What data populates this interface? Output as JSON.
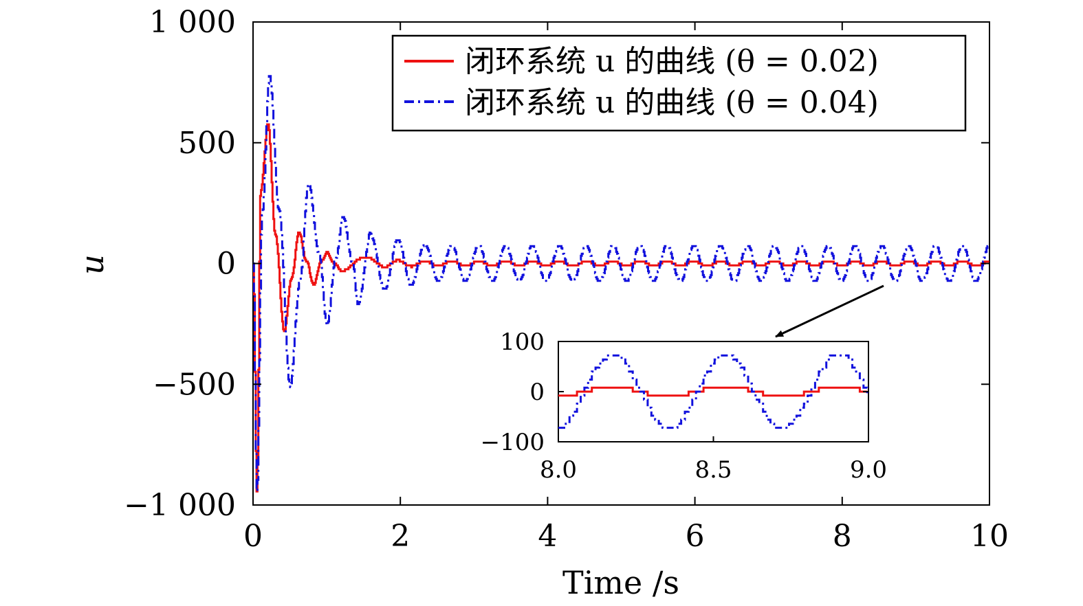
{
  "chart_data": {
    "type": "line",
    "xlabel": "Time /s",
    "ylabel": "u",
    "xlim": [
      0,
      10
    ],
    "ylim": [
      -1000,
      1000
    ],
    "x_ticks": [
      0,
      2,
      4,
      6,
      8,
      10
    ],
    "x_tick_labels": [
      "0",
      "2",
      "4",
      "6",
      "8",
      "10"
    ],
    "y_ticks": [
      -1000,
      -500,
      0,
      500,
      1000
    ],
    "y_tick_labels": [
      "−1 000",
      "−500",
      "0",
      "500",
      "1 000"
    ],
    "grid": false,
    "legend": "top-right",
    "series": [
      {
        "name": "闭环系统 u 的曲线 (θ = 0.02)",
        "color": "#ee1111",
        "style": "solid",
        "points": [
          [
            0.0,
            0
          ],
          [
            0.05,
            -950
          ],
          [
            0.1,
            300
          ],
          [
            0.2,
            580
          ],
          [
            0.3,
            120
          ],
          [
            0.42,
            -280
          ],
          [
            0.52,
            -60
          ],
          [
            0.62,
            130
          ],
          [
            0.72,
            10
          ],
          [
            0.82,
            -90
          ],
          [
            0.92,
            10
          ],
          [
            1.0,
            45
          ],
          [
            1.1,
            0
          ],
          [
            1.2,
            -30
          ],
          [
            1.5,
            25
          ],
          [
            2.0,
            -15
          ],
          [
            3.0,
            15
          ],
          [
            10.0,
            -10
          ]
        ],
        "steady_amplitude": 10,
        "steady_period": 0.365
      },
      {
        "name": "闭环系统 u 的曲线 (θ = 0.04)",
        "color": "#1111dd",
        "style": "dashdot",
        "points": [
          [
            0.0,
            0
          ],
          [
            0.05,
            -950
          ],
          [
            0.12,
            200
          ],
          [
            0.22,
            780
          ],
          [
            0.35,
            220
          ],
          [
            0.5,
            -510
          ],
          [
            0.63,
            -80
          ],
          [
            0.75,
            330
          ],
          [
            0.9,
            30
          ],
          [
            1.0,
            -260
          ],
          [
            1.12,
            20
          ],
          [
            1.22,
            195
          ],
          [
            1.35,
            0
          ],
          [
            1.42,
            -170
          ],
          [
            1.6,
            135
          ],
          [
            2.0,
            80
          ],
          [
            3.0,
            70
          ],
          [
            10.0,
            70
          ]
        ],
        "steady_amplitude": 75,
        "steady_period": 0.365
      }
    ],
    "inset": {
      "xlim": [
        8.0,
        9.0
      ],
      "ylim": [
        -100,
        100
      ],
      "x_ticks": [
        8.0,
        8.5,
        9.0
      ],
      "x_tick_labels": [
        "8.0",
        "8.5",
        "9.0"
      ],
      "y_ticks": [
        -100,
        0,
        100
      ],
      "y_tick_labels": [
        "−100",
        "0",
        "100"
      ],
      "zoom_from": [
        8.6,
        0
      ]
    }
  }
}
